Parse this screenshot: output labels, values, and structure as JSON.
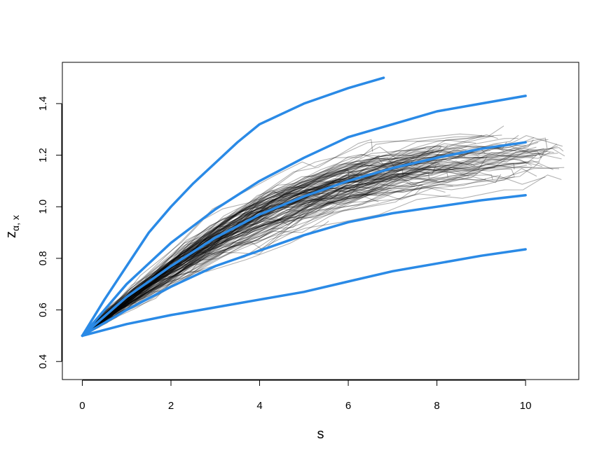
{
  "chart_data": {
    "type": "line",
    "xlabel": "s",
    "ylabel": "z",
    "ylabel_subscript": "α, x",
    "xlim": [
      -0.45,
      11.2
    ],
    "ylim": [
      0.33,
      1.56
    ],
    "x_ticks": [
      0,
      2,
      4,
      6,
      8,
      10
    ],
    "x_tick_labels": [
      "0",
      "2",
      "4",
      "6",
      "8",
      "10"
    ],
    "y_ticks": [
      0.4,
      0.6,
      0.8,
      1.0,
      1.2,
      1.4
    ],
    "y_tick_labels": [
      "0.4",
      "0.6",
      "0.8",
      "1.0",
      "1.2",
      "1.4"
    ],
    "grid": false,
    "colors": {
      "highlight": "#2a8ae6",
      "sample": "#000000",
      "axis": "#000000"
    },
    "highlighted_series": [
      {
        "x": [
          0,
          0.5,
          1,
          1.5,
          2,
          2.5,
          3,
          3.5,
          4,
          4.5,
          5,
          5.5,
          6,
          6.5,
          6.8
        ],
        "y": [
          0.5,
          0.64,
          0.77,
          0.9,
          1.0,
          1.09,
          1.17,
          1.25,
          1.32,
          1.36,
          1.4,
          1.43,
          1.46,
          1.485,
          1.5
        ]
      },
      {
        "x": [
          0,
          1,
          2,
          3,
          4,
          5,
          6,
          7,
          8,
          9,
          10
        ],
        "y": [
          0.5,
          0.7,
          0.86,
          0.99,
          1.1,
          1.19,
          1.27,
          1.32,
          1.37,
          1.4,
          1.43
        ]
      },
      {
        "x": [
          0,
          1,
          2,
          3,
          4,
          5,
          6,
          7,
          8,
          9,
          10
        ],
        "y": [
          0.5,
          0.65,
          0.77,
          0.88,
          0.97,
          1.04,
          1.1,
          1.15,
          1.19,
          1.225,
          1.25
        ]
      },
      {
        "x": [
          0,
          1,
          2,
          3,
          4,
          5,
          6,
          7,
          8,
          9,
          10
        ],
        "y": [
          0.5,
          0.6,
          0.69,
          0.77,
          0.83,
          0.89,
          0.94,
          0.975,
          1.0,
          1.025,
          1.045
        ]
      },
      {
        "x": [
          0,
          1,
          2,
          3,
          4,
          5,
          6,
          7,
          8,
          9,
          10
        ],
        "y": [
          0.5,
          0.545,
          0.58,
          0.61,
          0.64,
          0.67,
          0.71,
          0.75,
          0.78,
          0.81,
          0.835
        ]
      }
    ],
    "sample_paths": {
      "count": 140,
      "start": [
        0,
        0.5
      ],
      "x_end_range": [
        5.5,
        10.9
      ],
      "mean_curve": {
        "x": [
          0,
          1,
          2,
          3,
          4,
          5,
          6,
          7,
          8,
          9,
          10
        ],
        "y": [
          0.5,
          0.64,
          0.76,
          0.87,
          0.96,
          1.03,
          1.09,
          1.13,
          1.16,
          1.18,
          1.2
        ]
      },
      "spread": 0.09,
      "y_min_observed": 0.37,
      "y_max_observed": 1.5
    }
  }
}
